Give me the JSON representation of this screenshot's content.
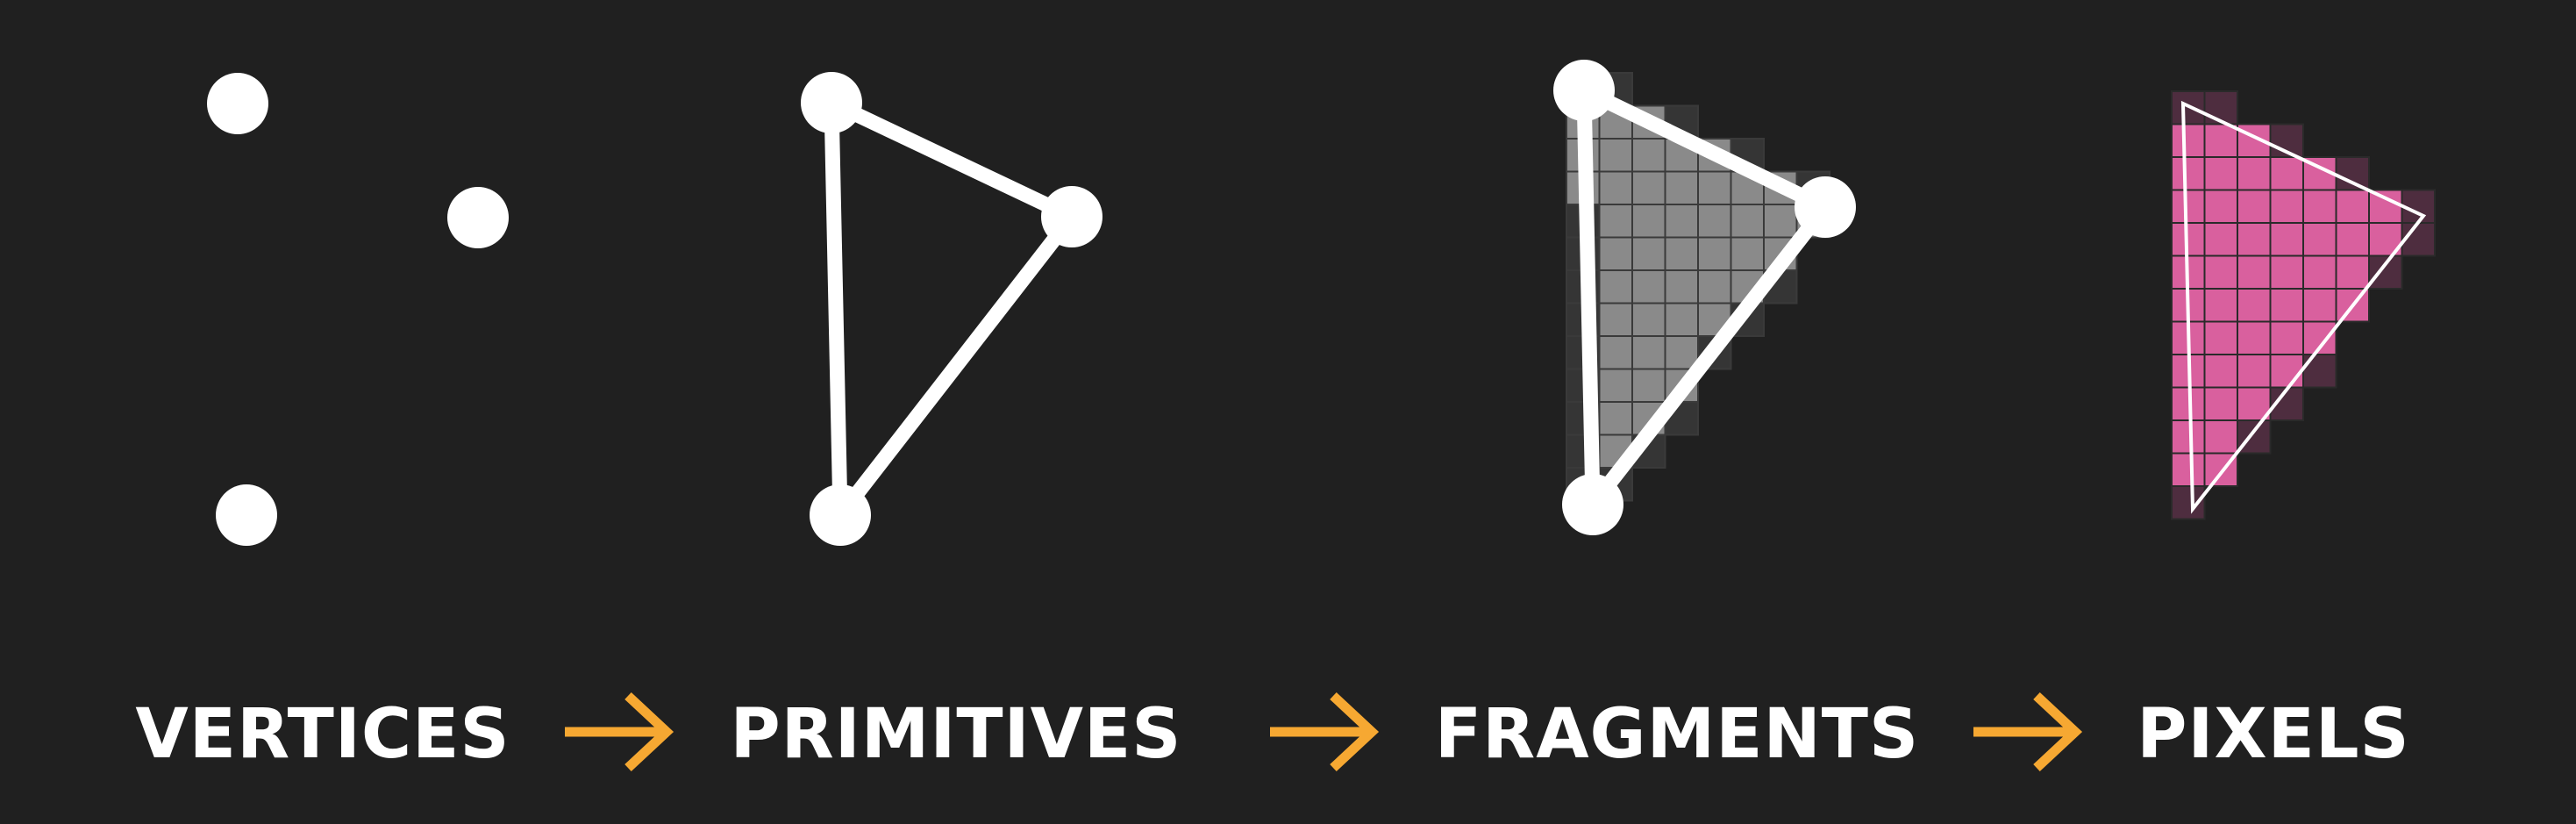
{
  "stages": [
    {
      "label": "VERTICES"
    },
    {
      "label": "PRIMITIVES"
    },
    {
      "label": "FRAGMENTS"
    },
    {
      "label": "PIXELS"
    }
  ],
  "arrow_count": 3,
  "colors": {
    "background": "#202020",
    "foreground": "#ffffff",
    "arrow": "#f6a832",
    "fragment_fill": "#8a8a8a",
    "fragment_edge": "#3a3a3a",
    "pixel_fill": "#d9609e",
    "pixel_dim": "#4e2d3f"
  }
}
